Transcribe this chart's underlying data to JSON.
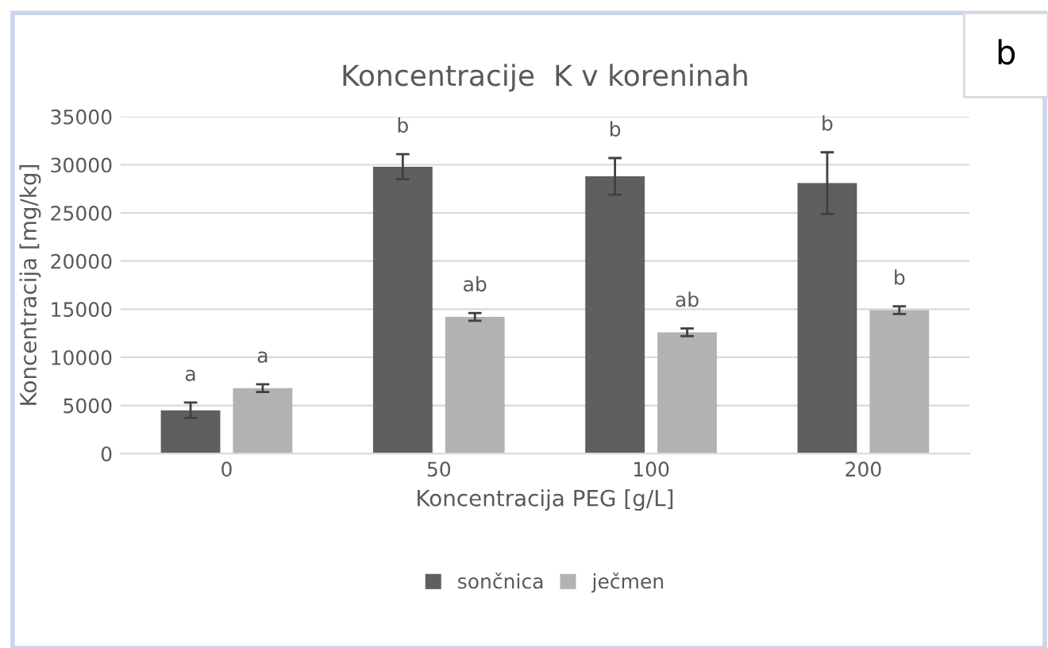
{
  "chart_data": {
    "type": "bar",
    "title": "Koncentracije  K v koreninah",
    "xlabel": "Koncentracija PEG [g/L]",
    "ylabel": "Koncentracija [mg/kg]",
    "categories": [
      "0",
      "50",
      "100",
      "200"
    ],
    "series": [
      {
        "name": "sončnica",
        "color": "#5f5f5f",
        "values": [
          4500,
          29800,
          28800,
          28100
        ],
        "errors": [
          800,
          1300,
          1900,
          3200
        ]
      },
      {
        "name": "ječmen",
        "color": "#b2b2b2",
        "values": [
          6800,
          14200,
          12600,
          14900
        ],
        "errors": [
          400,
          400,
          400,
          400
        ]
      }
    ],
    "ylim": [
      0,
      35000
    ],
    "yticks": [
      0,
      5000,
      10000,
      15000,
      20000,
      25000,
      30000,
      35000
    ],
    "grid": "y",
    "legend": "bottom",
    "annotations": [
      "a",
      "a",
      "b",
      "ab",
      "b",
      "ab",
      "b",
      "b",
      "b"
    ]
  }
}
